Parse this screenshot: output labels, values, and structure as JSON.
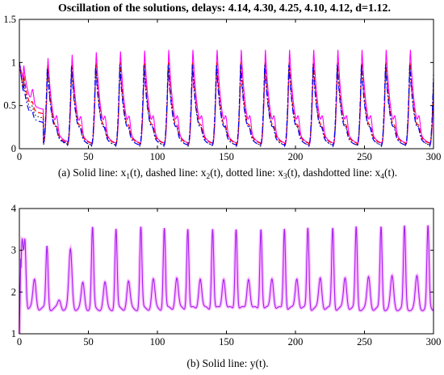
{
  "figure_title": "Oscillation of the solutions, delays: 4.14, 4.30, 4.25, 4.10, 4.12, d=1.12.",
  "colors": {
    "x1": "#ff00ff",
    "x2": "#ff0000",
    "x3": "#202020",
    "x4": "#0000ff",
    "y": "#a020f0",
    "y_fill": "#ff00ff"
  },
  "chart_data": [
    {
      "type": "line",
      "panel": "a",
      "caption": {
        "prefix": "(a) Solid line: x",
        "s1": "1",
        "mid1": "(t), dashed line: x",
        "s2": "2",
        "mid2": "(t), dotted line: x",
        "s3": "3",
        "mid3": "(t), dashdotted line: x",
        "s4": "4",
        "suffix": "(t)."
      },
      "xlim": [
        0,
        300
      ],
      "ylim": [
        0,
        1.5
      ],
      "xticks": [
        "0",
        "50",
        "100",
        "150",
        "200",
        "250",
        "300"
      ],
      "yticks": [
        "0",
        "0.5",
        "1",
        "1.5"
      ],
      "period": 17.5,
      "series": [
        {
          "key": "x1",
          "style": "solid",
          "peaks": [
            0.98,
            1.08,
            1.12,
            1.15,
            1.16,
            1.17,
            1.18,
            1.18,
            1.18,
            1.18,
            1.18,
            1.18,
            1.18,
            1.18,
            1.18,
            1.18,
            1.18
          ],
          "troughs": [
            0.45,
            0.07,
            0.05,
            0.05,
            0.05,
            0.05,
            0.05,
            0.05,
            0.05,
            0.05,
            0.05,
            0.05,
            0.05,
            0.05,
            0.05,
            0.05,
            0.05
          ]
        },
        {
          "key": "x2",
          "style": "dashed",
          "peaks": [
            0.9,
            0.99,
            1.0,
            1.02,
            1.03,
            1.03,
            1.03,
            1.03,
            1.03,
            1.03,
            1.03,
            1.03,
            1.03,
            1.03,
            1.03,
            1.03,
            1.03
          ],
          "troughs": [
            0.4,
            0.06,
            0.05,
            0.05,
            0.05,
            0.05,
            0.05,
            0.05,
            0.05,
            0.05,
            0.05,
            0.05,
            0.05,
            0.05,
            0.05,
            0.05,
            0.05
          ]
        },
        {
          "key": "x3",
          "style": "dotted",
          "peaks": [
            0.85,
            0.97,
            0.99,
            1.0,
            1.01,
            1.01,
            1.01,
            1.01,
            1.01,
            1.01,
            1.01,
            1.01,
            1.01,
            1.01,
            1.01,
            1.01,
            1.01
          ],
          "troughs": [
            0.35,
            0.04,
            0.03,
            0.03,
            0.03,
            0.03,
            0.03,
            0.03,
            0.03,
            0.03,
            0.03,
            0.03,
            0.03,
            0.03,
            0.03,
            0.03,
            0.03
          ]
        },
        {
          "key": "x4",
          "style": "dashdot",
          "peaks": [
            0.8,
            0.95,
            0.97,
            0.98,
            0.99,
            0.99,
            0.99,
            0.99,
            0.99,
            0.99,
            0.99,
            0.99,
            0.99,
            0.99,
            0.99,
            0.99,
            0.99
          ],
          "troughs": [
            0.3,
            0.05,
            0.03,
            0.03,
            0.03,
            0.03,
            0.03,
            0.03,
            0.03,
            0.03,
            0.03,
            0.03,
            0.03,
            0.03,
            0.03,
            0.03,
            0.03
          ]
        }
      ]
    },
    {
      "type": "line",
      "panel": "b",
      "caption": "(b) Solid line: y(t).",
      "xlim": [
        0,
        300
      ],
      "ylim": [
        1,
        4
      ],
      "xticks": [
        "0",
        "50",
        "100",
        "150",
        "200",
        "250",
        "300"
      ],
      "yticks": [
        "1",
        "2",
        "3",
        "4"
      ],
      "series": [
        {
          "key": "y",
          "style": "solid",
          "baseline": 1.6,
          "peaks": [
            {
              "t": 2,
              "v": 3.2
            },
            {
              "t": 4,
              "v": 3.25
            },
            {
              "t": 11,
              "v": 2.3
            },
            {
              "t": 20,
              "v": 3.1
            },
            {
              "t": 29,
              "v": 1.8
            },
            {
              "t": 37,
              "v": 3.0
            },
            {
              "t": 46,
              "v": 2.2
            },
            {
              "t": 53,
              "v": 3.52
            },
            {
              "t": 62,
              "v": 2.2
            },
            {
              "t": 70,
              "v": 3.5
            },
            {
              "t": 79,
              "v": 2.25
            },
            {
              "t": 88,
              "v": 3.55
            },
            {
              "t": 97,
              "v": 2.3
            },
            {
              "t": 105,
              "v": 3.55
            },
            {
              "t": 114,
              "v": 2.35
            },
            {
              "t": 122,
              "v": 3.55
            },
            {
              "t": 131,
              "v": 2.35
            },
            {
              "t": 140,
              "v": 3.55
            },
            {
              "t": 148,
              "v": 2.35
            },
            {
              "t": 157,
              "v": 3.55
            },
            {
              "t": 166,
              "v": 2.35
            },
            {
              "t": 175,
              "v": 3.55
            },
            {
              "t": 183,
              "v": 2.35
            },
            {
              "t": 192,
              "v": 3.55
            },
            {
              "t": 201,
              "v": 2.35
            },
            {
              "t": 209,
              "v": 3.55
            },
            {
              "t": 218,
              "v": 2.35
            },
            {
              "t": 227,
              "v": 3.55
            },
            {
              "t": 236,
              "v": 2.35
            },
            {
              "t": 244,
              "v": 3.55
            },
            {
              "t": 253,
              "v": 2.35
            },
            {
              "t": 262,
              "v": 3.55
            },
            {
              "t": 270,
              "v": 2.35
            },
            {
              "t": 279,
              "v": 3.55
            },
            {
              "t": 288,
              "v": 2.35
            },
            {
              "t": 296,
              "v": 3.55
            }
          ]
        }
      ]
    }
  ]
}
